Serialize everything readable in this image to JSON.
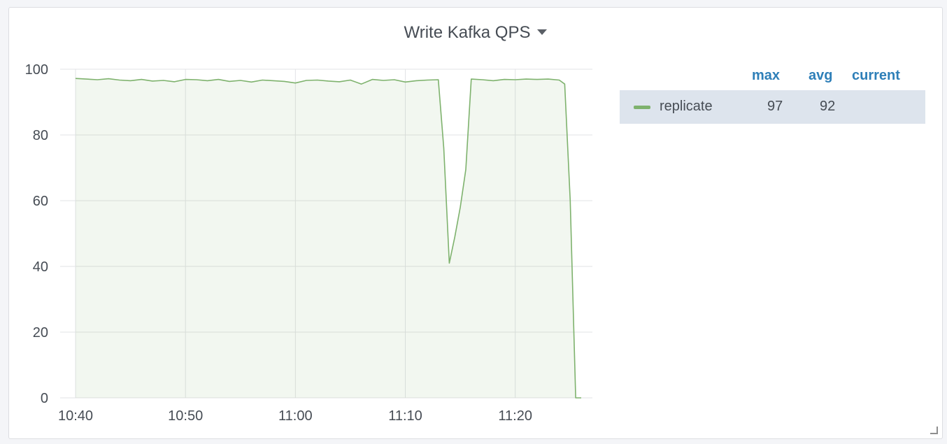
{
  "panel": {
    "title": "Write Kafka QPS"
  },
  "legend": {
    "columns": {
      "max": "max",
      "avg": "avg",
      "current": "current"
    },
    "rows": [
      {
        "name": "replicate",
        "max": "97",
        "avg": "92",
        "current": "",
        "color": "#7eb26d"
      }
    ]
  },
  "chart_data": {
    "type": "area",
    "title": "Write Kafka QPS",
    "xlabel": "",
    "ylabel": "",
    "ylim": [
      0,
      100
    ],
    "yticks": [
      "0",
      "20",
      "40",
      "60",
      "80",
      "100"
    ],
    "xticks": [
      {
        "time": "10:40",
        "label": "10:40"
      },
      {
        "time": "10:50",
        "label": "10:50"
      },
      {
        "time": "11:00",
        "label": "11:00"
      },
      {
        "time": "11:10",
        "label": "11:10"
      },
      {
        "time": "11:20",
        "label": "11:20"
      }
    ],
    "xlim": [
      "10:40",
      "11:26"
    ],
    "grid": true,
    "legend_position": "right",
    "series": [
      {
        "name": "replicate",
        "color": "#7eb26d",
        "points": [
          [
            "10:40",
            97.2
          ],
          [
            "10:41",
            97.0
          ],
          [
            "10:42",
            96.8
          ],
          [
            "10:43",
            97.1
          ],
          [
            "10:44",
            96.7
          ],
          [
            "10:45",
            96.5
          ],
          [
            "10:46",
            96.9
          ],
          [
            "10:47",
            96.4
          ],
          [
            "10:48",
            96.6
          ],
          [
            "10:49",
            96.2
          ],
          [
            "10:50",
            96.9
          ],
          [
            "10:51",
            96.8
          ],
          [
            "10:52",
            96.5
          ],
          [
            "10:53",
            96.9
          ],
          [
            "10:54",
            96.3
          ],
          [
            "10:55",
            96.6
          ],
          [
            "10:56",
            96.1
          ],
          [
            "10:57",
            96.7
          ],
          [
            "10:58",
            96.5
          ],
          [
            "10:59",
            96.3
          ],
          [
            "11:00",
            95.8
          ],
          [
            "11:01",
            96.6
          ],
          [
            "11:02",
            96.7
          ],
          [
            "11:03",
            96.4
          ],
          [
            "11:04",
            96.2
          ],
          [
            "11:05",
            96.7
          ],
          [
            "11:06",
            95.5
          ],
          [
            "11:07",
            96.9
          ],
          [
            "11:08",
            96.6
          ],
          [
            "11:09",
            96.8
          ],
          [
            "11:10",
            96.1
          ],
          [
            "11:11",
            96.5
          ],
          [
            "11:12",
            96.7
          ],
          [
            "11:13",
            96.8
          ],
          [
            "11:13:30",
            76.0
          ],
          [
            "11:14",
            41.0
          ],
          [
            "11:14:30",
            49.0
          ],
          [
            "11:15",
            58.0
          ],
          [
            "11:15:30",
            69.5
          ],
          [
            "11:16",
            97.0
          ],
          [
            "11:17",
            96.8
          ],
          [
            "11:18",
            96.5
          ],
          [
            "11:19",
            96.9
          ],
          [
            "11:20",
            96.8
          ],
          [
            "11:21",
            97.0
          ],
          [
            "11:22",
            96.9
          ],
          [
            "11:23",
            97.0
          ],
          [
            "11:24",
            96.7
          ],
          [
            "11:24:30",
            95.5
          ],
          [
            "11:25",
            60.0
          ],
          [
            "11:25:30",
            0.0
          ],
          [
            "11:26",
            0.0
          ]
        ]
      }
    ]
  }
}
